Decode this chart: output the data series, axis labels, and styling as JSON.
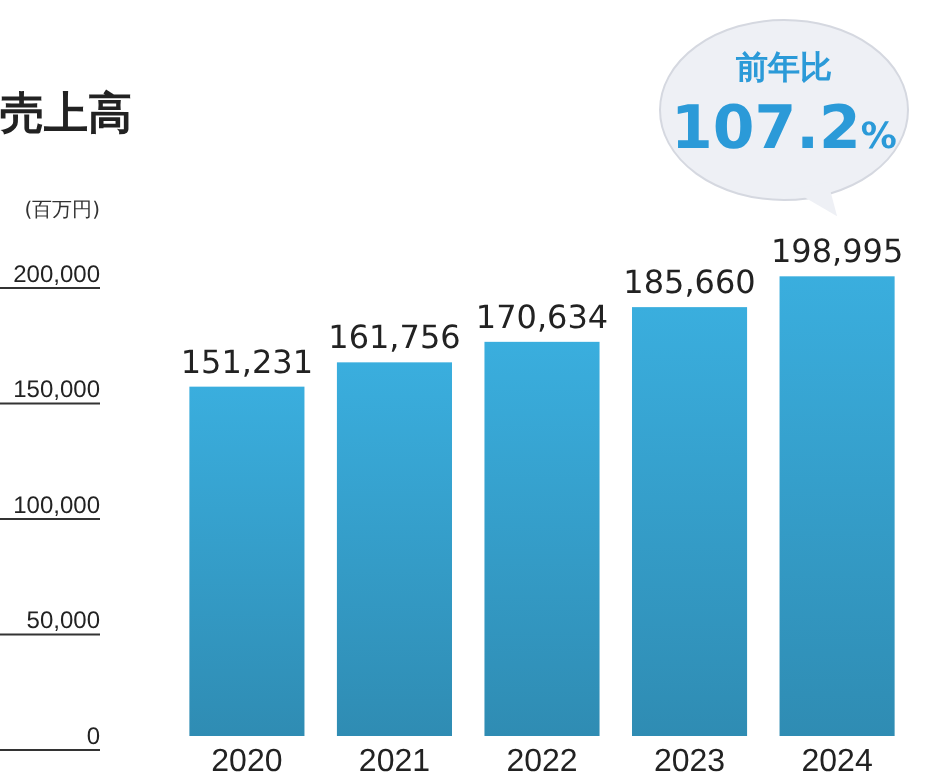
{
  "chart_data": {
    "type": "bar",
    "title": "売上高",
    "ylabel": "(百万円)",
    "categories": [
      "2020",
      "2021",
      "2022",
      "2023",
      "2024"
    ],
    "values": [
      151231,
      161756,
      170634,
      185660,
      198995
    ],
    "value_labels": [
      "151,231",
      "161,756",
      "170,634",
      "185,660",
      "198,995"
    ],
    "color": "#3aaede",
    "ylim": [
      0,
      200000
    ],
    "yticks": [
      0,
      {
        "value": 50000,
        "label": "50,000"
      },
      {
        "value": 100000,
        "label": "100,000"
      },
      {
        "value": 150000,
        "label": "150,000"
      },
      {
        "value": 200000,
        "label": "200,000"
      }
    ],
    "grid": false,
    "annotations": [
      {
        "text": "前年比 107.2%",
        "x": "2024",
        "y": 198995
      }
    ]
  }
}
